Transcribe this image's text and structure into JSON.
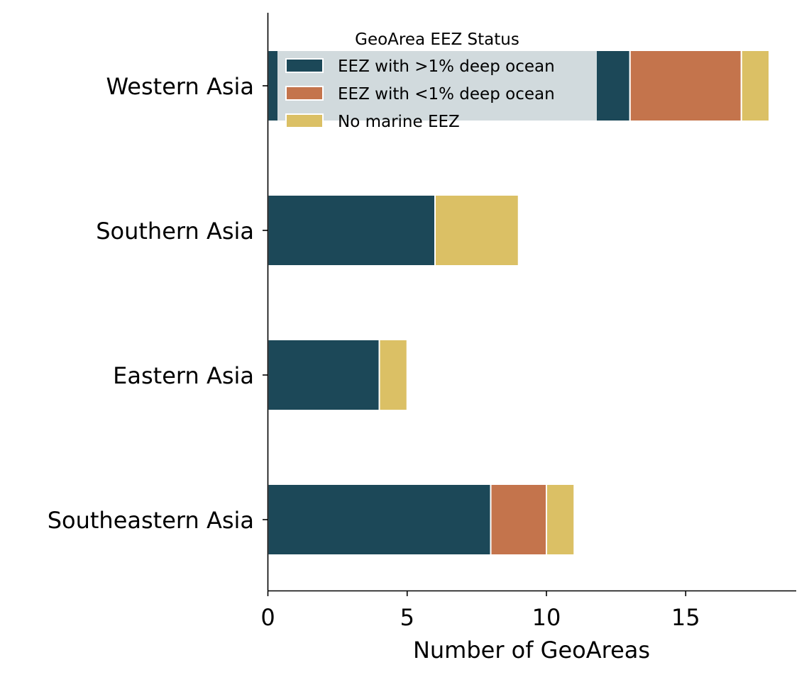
{
  "chart_data": {
    "type": "bar",
    "orientation": "horizontal",
    "stacked": true,
    "categories": [
      "Western Asia",
      "Southern Asia",
      "Eastern Asia",
      "Southeastern Asia"
    ],
    "series": [
      {
        "name": "EEZ with >1% deep ocean",
        "values": [
          13,
          6,
          4,
          8
        ],
        "color": "#1c4858"
      },
      {
        "name": "EEZ with <1% deep ocean",
        "values": [
          4,
          0,
          0,
          2
        ],
        "color": "#c4744c"
      },
      {
        "name": "No marine EEZ",
        "values": [
          1,
          3,
          1,
          1
        ],
        "color": "#dbc065"
      }
    ],
    "xlabel": "Number of GeoAreas",
    "ylabel": "",
    "xlim": [
      0,
      19
    ],
    "xticks": [
      0,
      5,
      10,
      15
    ],
    "legend_title": "GeoArea EEZ Status",
    "legend_position": "top",
    "grid": false
  }
}
